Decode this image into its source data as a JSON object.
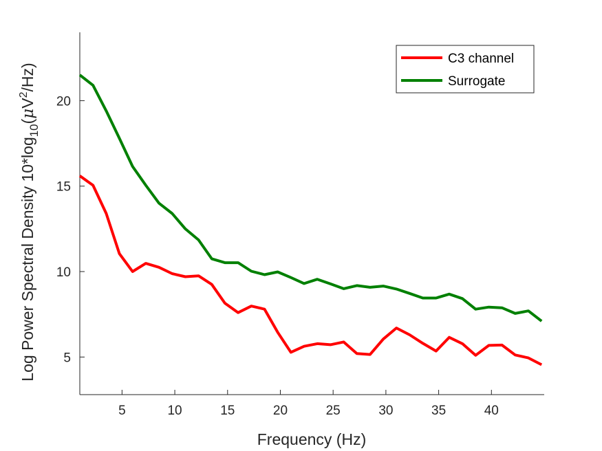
{
  "chart_data": {
    "type": "line",
    "xlabel": "Frequency (Hz)",
    "ylabel_main": "Log Power Spectral Density 10*log",
    "ylabel_sub": "10",
    "ylabel_unit_open": "(",
    "ylabel_mu": "μ",
    "ylabel_V": "V",
    "ylabel_sup": "2",
    "ylabel_unit_close": "/Hz)",
    "xlim": [
      1,
      45
    ],
    "ylim": [
      2.8,
      24
    ],
    "xticks": [
      5,
      10,
      15,
      20,
      25,
      30,
      35,
      40
    ],
    "yticks": [
      5,
      10,
      15,
      20
    ],
    "grid": false,
    "legend_position": "top-right",
    "x": [
      1,
      2.25,
      3.5,
      4.75,
      6,
      7.25,
      8.5,
      9.75,
      11,
      12.25,
      13.5,
      14.75,
      16,
      17.25,
      18.5,
      19.75,
      21,
      22.25,
      23.5,
      24.75,
      26,
      27.25,
      28.5,
      29.75,
      31,
      32.25,
      33.5,
      34.75,
      36,
      37.25,
      38.5,
      39.75,
      41,
      42.25,
      43.5,
      44.75
    ],
    "series": [
      {
        "name": "C3 channel",
        "color": "#ff0000",
        "values": [
          15.6,
          15.05,
          13.4,
          11.05,
          10.0,
          10.48,
          10.25,
          9.88,
          9.7,
          9.75,
          9.25,
          8.15,
          7.6,
          7.98,
          7.8,
          6.45,
          5.28,
          5.63,
          5.78,
          5.72,
          5.88,
          5.2,
          5.15,
          6.05,
          6.7,
          6.3,
          5.8,
          5.35,
          6.15,
          5.78,
          5.1,
          5.68,
          5.7,
          5.12,
          4.95,
          4.55
        ]
      },
      {
        "name": "Surrogate",
        "color": "#008000",
        "values": [
          21.5,
          20.9,
          19.4,
          17.8,
          16.15,
          15.05,
          14.0,
          13.4,
          12.5,
          11.85,
          10.75,
          10.52,
          10.52,
          10.02,
          9.82,
          9.98,
          9.65,
          9.3,
          9.55,
          9.28,
          9.0,
          9.18,
          9.08,
          9.15,
          8.98,
          8.72,
          8.45,
          8.45,
          8.68,
          8.42,
          7.8,
          7.92,
          7.88,
          7.55,
          7.7,
          7.1
        ]
      }
    ]
  }
}
